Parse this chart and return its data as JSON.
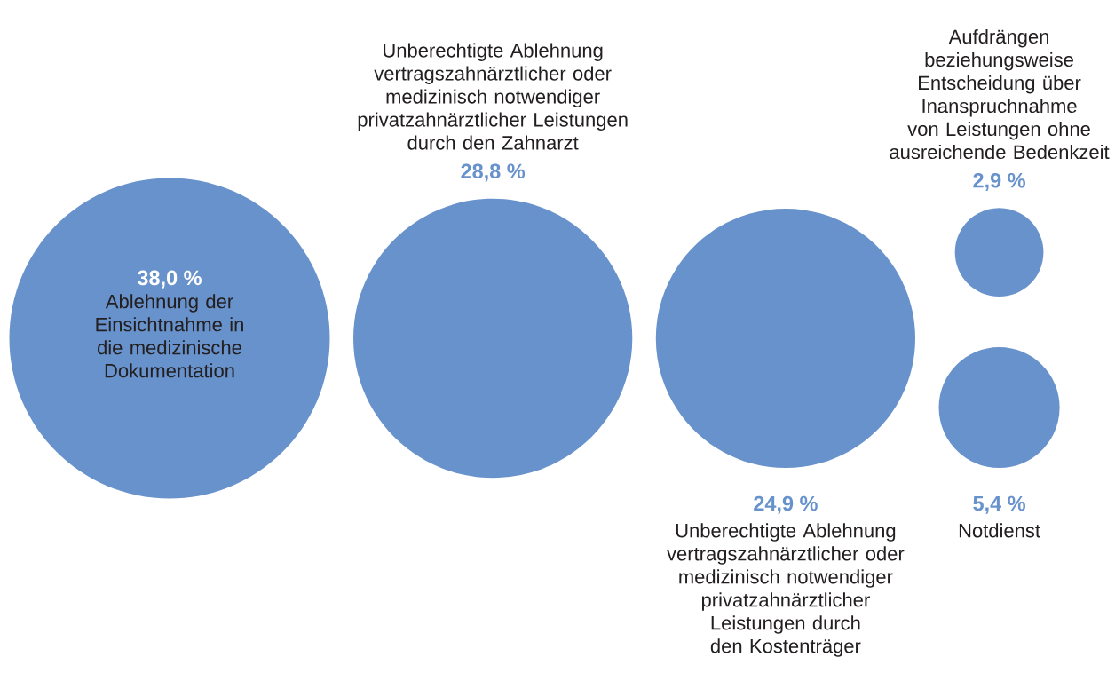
{
  "chart_data": {
    "type": "other",
    "categories": [
      "Ablehnung der Einsichtnahme in die medizinische Dokumentation",
      "Unberechtigte Ablehnung vertragszahnärztlicher oder medizinisch notwendiger privatzahnärztlicher Leistungen durch den Zahnarzt",
      "Unberechtigte Ablehnung vertragszahnärztlicher oder medizinisch notwendiger privatzahnärztlicher Leistungen durch den Kostenträger",
      "Aufdrängen beziehungsweise Entscheidung über Inanspruchnahme von Leistungen ohne ausreichende Bedenkzeit",
      "Notdienst"
    ],
    "values": [
      38.0,
      28.8,
      24.9,
      2.9,
      5.4
    ],
    "value_labels": [
      "38,0 %",
      "28,8 %",
      "24,9 %",
      "2,9 %",
      "5,4 %"
    ],
    "color": "#6892cb"
  }
}
